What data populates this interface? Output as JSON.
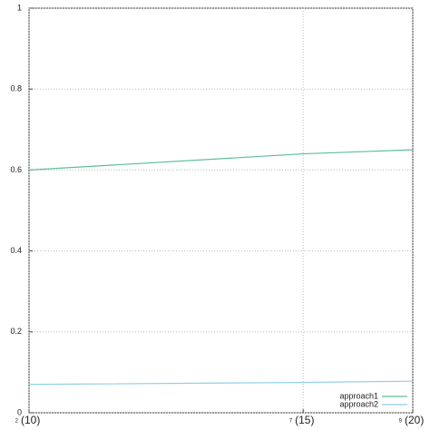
{
  "chart_data": {
    "type": "line",
    "x": [
      2,
      7,
      9
    ],
    "series": [
      {
        "name": "approach1",
        "color": "#5cbf94",
        "values": [
          0.6,
          0.64,
          0.65
        ]
      },
      {
        "name": "approach2",
        "color": "#8fd0e6",
        "values": [
          0.07,
          0.075,
          0.078
        ]
      }
    ],
    "xlim": [
      2,
      9
    ],
    "xticks": [
      2,
      7,
      9
    ],
    "xtick_labels": [
      "(10)",
      "(15)",
      "(20)"
    ],
    "ylim": [
      0,
      1
    ],
    "yticks": [
      0,
      0.2,
      0.4,
      0.6,
      0.8,
      1
    ],
    "grid": true,
    "legend": "bottom-right"
  }
}
